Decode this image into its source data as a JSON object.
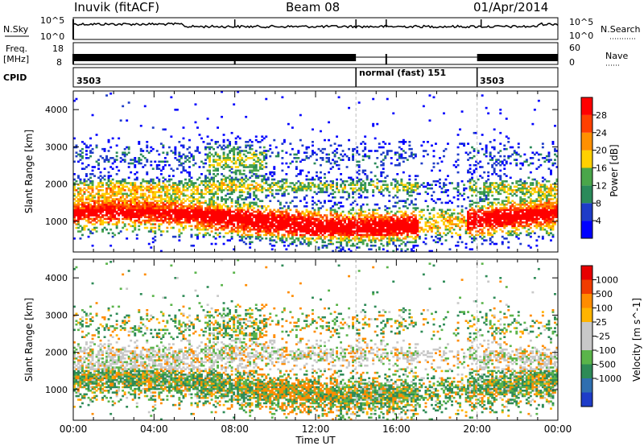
{
  "header": {
    "station": "Inuvik (fitACF)",
    "beam": "Beam 08",
    "date": "01/Apr/2014"
  },
  "params": {
    "nsky_label": "N.Sky",
    "nsearch_label": "N.Search",
    "freq_label_1": "Freq.",
    "freq_label_2": "[MHz]",
    "nave_label": "Nave",
    "cpid_label": "CPID",
    "left_ticks": {
      "nsky": [
        "10^5",
        "10^0"
      ],
      "freq": [
        "18",
        "8"
      ]
    },
    "right_ticks": {
      "nsearch": [
        "10^5",
        "10^0"
      ],
      "nave": [
        "60",
        "0"
      ]
    }
  },
  "cpid_segments": [
    {
      "label": "3503",
      "start_h": 0,
      "end_h": 14
    },
    {
      "label": "normal (fast) 151",
      "start_h": 14,
      "end_h": 20
    },
    {
      "label": "3503",
      "start_h": 20,
      "end_h": 24
    }
  ],
  "colors": {
    "power_scale": [
      "#0000ff",
      "#1e3cc8",
      "#2a8a5a",
      "#4aa64a",
      "#ffd000",
      "#ff9000",
      "#ff4000",
      "#ff0000"
    ],
    "velocity_scale": [
      "#e80000",
      "#f03c00",
      "#ff8c00",
      "#ffb400",
      "#c8c8c8",
      "#c8c8c8",
      "#5ab44a",
      "#2e8b57",
      "#2f6fb0",
      "#1e3cc8"
    ]
  },
  "chart_data": [
    {
      "type": "heatmap",
      "name": "Power",
      "ylabel": "Slant Range [km]",
      "xlabel": "",
      "xlim_h": [
        0,
        24
      ],
      "ylim": [
        180,
        4500
      ],
      "yticks": [
        "1000",
        "2000",
        "3000",
        "4000"
      ],
      "colorbar_label": "Power [dB]",
      "colorbar_ticks": [
        "4",
        "8",
        "12",
        "16",
        "20",
        "24",
        "28"
      ],
      "colorbar_range": [
        0,
        32
      ]
    },
    {
      "type": "heatmap",
      "name": "Velocity",
      "ylabel": "Slant Range [km]",
      "xlabel": "Time UT",
      "xlim_h": [
        0,
        24
      ],
      "ylim": [
        180,
        4500
      ],
      "xticks": [
        "00:00",
        "04:00",
        "08:00",
        "12:00",
        "16:00",
        "20:00",
        "00:00"
      ],
      "yticks": [
        "1000",
        "2000",
        "3000",
        "4000"
      ],
      "colorbar_label": "Velocity [m s^-1]",
      "colorbar_ticks": [
        "1000",
        "500",
        "100",
        "25",
        "-25",
        "-100",
        "-500",
        "-1000"
      ]
    }
  ]
}
